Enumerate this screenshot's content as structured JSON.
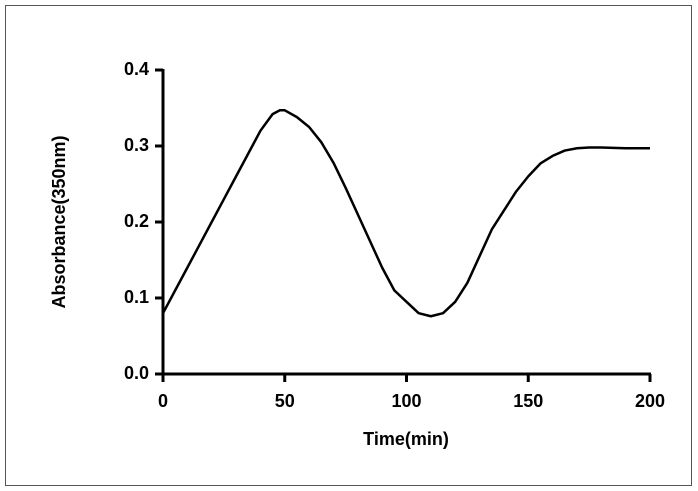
{
  "chart_data": {
    "type": "line",
    "xlabel": "Time(min)",
    "ylabel": "Absorbance(350nm)",
    "x": [
      0,
      5,
      10,
      15,
      20,
      25,
      30,
      35,
      40,
      45,
      48,
      50,
      55,
      60,
      65,
      70,
      75,
      80,
      85,
      90,
      95,
      100,
      105,
      110,
      115,
      120,
      125,
      130,
      135,
      140,
      145,
      150,
      155,
      160,
      165,
      170,
      175,
      180,
      190,
      200
    ],
    "series": [
      {
        "color": "#000000",
        "values": [
          0.08,
          0.11,
          0.14,
          0.17,
          0.2,
          0.23,
          0.26,
          0.29,
          0.32,
          0.342,
          0.347,
          0.347,
          0.338,
          0.325,
          0.305,
          0.278,
          0.245,
          0.21,
          0.175,
          0.14,
          0.11,
          0.095,
          0.08,
          0.076,
          0.08,
          0.095,
          0.12,
          0.155,
          0.19,
          0.215,
          0.24,
          0.26,
          0.277,
          0.287,
          0.294,
          0.297,
          0.298,
          0.298,
          0.297,
          0.297
        ]
      }
    ],
    "xlim": [
      0,
      200
    ],
    "xticks": [
      0,
      50,
      100,
      150,
      200
    ],
    "ylim": [
      0,
      0.4
    ],
    "yticks": [
      {
        "value": 0,
        "label": "0.0"
      },
      0.1,
      0.2,
      0.3,
      0.4
    ]
  }
}
